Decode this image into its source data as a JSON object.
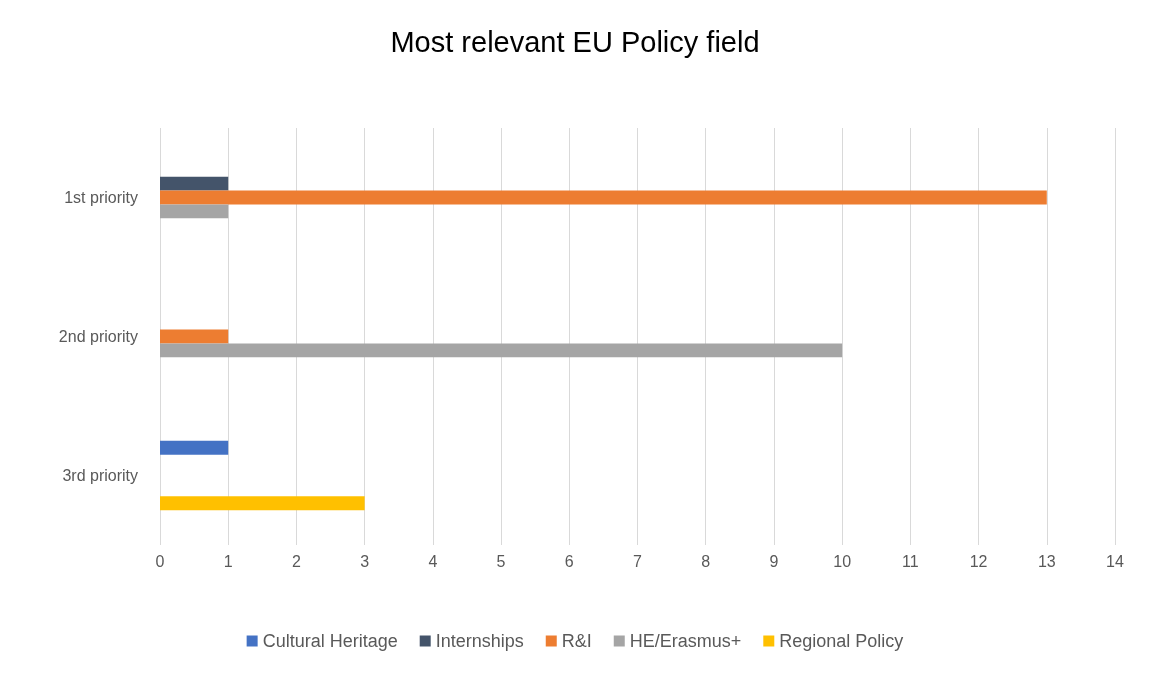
{
  "chart_data": {
    "type": "bar",
    "title": "Most relevant EU Policy field",
    "orientation": "horizontal",
    "categories": [
      "1st priority",
      "2nd priority",
      "3rd priority"
    ],
    "series": [
      {
        "name": "Cultural Heritage",
        "color": "#4472c4",
        "values": [
          null,
          null,
          1
        ]
      },
      {
        "name": "Internships",
        "color": "#44546a",
        "values": [
          1,
          null,
          null
        ]
      },
      {
        "name": "R&I",
        "color": "#ed7d31",
        "values": [
          13,
          1,
          null
        ]
      },
      {
        "name": "HE/Erasmus+",
        "color": "#a5a5a5",
        "values": [
          1,
          10,
          null
        ]
      },
      {
        "name": "Regional Policy",
        "color": "#ffc000",
        "values": [
          null,
          null,
          3
        ]
      }
    ],
    "xlim": [
      0,
      14
    ],
    "xticks": [
      0,
      1,
      2,
      3,
      4,
      5,
      6,
      7,
      8,
      9,
      10,
      11,
      12,
      13,
      14
    ],
    "grid": "x",
    "legend": "bottom"
  }
}
